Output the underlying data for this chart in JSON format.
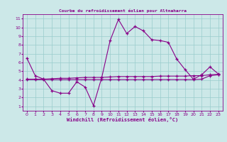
{
  "title": "Courbe du refroidissement éolien pour Altnaharra",
  "xlabel": "Windchill (Refroidissement éolien,°C)",
  "xlim": [
    -0.5,
    23.5
  ],
  "ylim": [
    0.5,
    11.5
  ],
  "xticks": [
    0,
    1,
    2,
    3,
    4,
    5,
    6,
    7,
    8,
    9,
    10,
    11,
    12,
    13,
    14,
    15,
    16,
    17,
    18,
    19,
    20,
    21,
    22,
    23
  ],
  "yticks": [
    1,
    2,
    3,
    4,
    5,
    6,
    7,
    8,
    9,
    10,
    11
  ],
  "bg_color": "#cce8e8",
  "line_color": "#880088",
  "grid_color": "#99cccc",
  "title_color": "#880088",
  "spine_color": "#880088",
  "line1_x": [
    0,
    1,
    2,
    3,
    4,
    5,
    6,
    7,
    8,
    9,
    10,
    11,
    12,
    13,
    14,
    15,
    16,
    17,
    18,
    19,
    20,
    21,
    22,
    23
  ],
  "line1_y": [
    6.5,
    4.5,
    4.1,
    2.8,
    2.5,
    2.5,
    3.8,
    3.2,
    1.1,
    4.3,
    8.5,
    10.9,
    9.3,
    10.1,
    9.6,
    8.6,
    8.5,
    8.3,
    6.4,
    5.2,
    4.1,
    4.6,
    5.5,
    4.7
  ],
  "line2_x": [
    0,
    1,
    2,
    3,
    4,
    5,
    6,
    7,
    8,
    9,
    10,
    11,
    12,
    13,
    14,
    15,
    16,
    17,
    18,
    19,
    20,
    21,
    22,
    23
  ],
  "line2_y": [
    4.1,
    4.1,
    4.1,
    4.15,
    4.2,
    4.2,
    4.25,
    4.3,
    4.3,
    4.3,
    4.35,
    4.4,
    4.4,
    4.4,
    4.4,
    4.4,
    4.45,
    4.45,
    4.45,
    4.45,
    4.5,
    4.5,
    4.6,
    4.65
  ],
  "line3_x": [
    0,
    1,
    2,
    3,
    4,
    5,
    6,
    7,
    8,
    9,
    10,
    11,
    12,
    13,
    14,
    15,
    16,
    17,
    18,
    19,
    20,
    21,
    22,
    23
  ],
  "line3_y": [
    4.05,
    4.05,
    4.05,
    4.05,
    4.05,
    4.05,
    4.05,
    4.05,
    4.05,
    4.05,
    4.05,
    4.05,
    4.05,
    4.05,
    4.05,
    4.05,
    4.05,
    4.05,
    4.05,
    4.05,
    4.05,
    4.1,
    4.5,
    4.6
  ]
}
